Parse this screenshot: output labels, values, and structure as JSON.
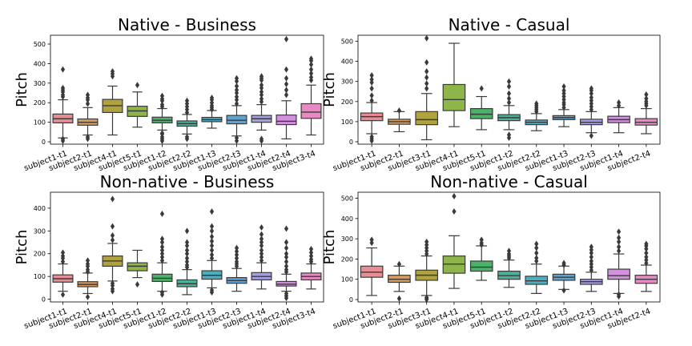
{
  "chart_data": [
    {
      "type": "box",
      "title": "Native - Business",
      "ylabel": "Pitch",
      "xlabel": "",
      "ylim": [
        -12,
        545
      ],
      "yticks": [
        0,
        100,
        200,
        300,
        400,
        500
      ],
      "grid": false,
      "categories": [
        "subject1-t1",
        "subject2-t1",
        "subject4-t1",
        "subject5-t1",
        "subject1-t2",
        "subject2-t2",
        "subject1-t3",
        "subject2-t3",
        "subject1-t4",
        "subject2-t4",
        "subject3-t4"
      ],
      "colors": [
        "#e88d94",
        "#d99a5a",
        "#b0a23f",
        "#8db54a",
        "#4bb26a",
        "#4bb29a",
        "#4bafc4",
        "#59a5d9",
        "#a39ee6",
        "#d48fe0",
        "#e78ac3"
      ],
      "boxes": [
        {
          "whislo": 20,
          "q1": 97,
          "med": 118,
          "q3": 142,
          "whishi": 215,
          "fliers": [
            5,
            15,
            230,
            240,
            255,
            265,
            275,
            370
          ]
        },
        {
          "whislo": 35,
          "q1": 85,
          "med": 100,
          "q3": 117,
          "whishi": 175,
          "fliers": [
            15,
            25,
            195,
            215,
            225,
            240
          ]
        },
        {
          "whislo": 35,
          "q1": 150,
          "med": 185,
          "q3": 217,
          "whishi": 285,
          "fliers": [
            335,
            348,
            360
          ]
        },
        {
          "whislo": 75,
          "q1": 130,
          "med": 158,
          "q3": 182,
          "whishi": 255,
          "fliers": [
            290
          ]
        },
        {
          "whislo": 60,
          "q1": 97,
          "med": 110,
          "q3": 126,
          "whishi": 170,
          "fliers": [
            5,
            15,
            25,
            40,
            45,
            180,
            190,
            210,
            220,
            235
          ]
        },
        {
          "whislo": 40,
          "q1": 80,
          "med": 93,
          "q3": 107,
          "whishi": 140,
          "fliers": [
            15,
            25,
            150,
            165,
            180,
            195,
            210
          ]
        },
        {
          "whislo": 70,
          "q1": 103,
          "med": 113,
          "q3": 125,
          "whishi": 160,
          "fliers": [
            165,
            175,
            185,
            200,
            215,
            225
          ]
        },
        {
          "whislo": 30,
          "q1": 92,
          "med": 110,
          "q3": 135,
          "whishi": 185,
          "fliers": [
            5,
            20,
            195,
            215,
            230,
            250,
            265,
            285,
            310,
            325
          ]
        },
        {
          "whislo": 60,
          "q1": 100,
          "med": 118,
          "q3": 135,
          "whishi": 190,
          "fliers": [
            5,
            15,
            205,
            220,
            240,
            255,
            275,
            290,
            315,
            325,
            335
          ]
        },
        {
          "whislo": 15,
          "q1": 88,
          "med": 105,
          "q3": 137,
          "whishi": 210,
          "fliers": [
            240,
            265,
            295,
            325,
            370,
            525
          ]
        },
        {
          "whislo": 35,
          "q1": 120,
          "med": 152,
          "q3": 195,
          "whishi": 290,
          "fliers": [
            315,
            330,
            350,
            370,
            395,
            415,
            425
          ]
        }
      ]
    },
    {
      "type": "box",
      "title": "Native - Casual",
      "ylabel": "Pitch",
      "xlabel": "",
      "ylim": [
        -12,
        530
      ],
      "yticks": [
        0,
        100,
        200,
        300,
        400,
        500
      ],
      "grid": false,
      "categories": [
        "subject1-t1",
        "subject2-t1",
        "subject3-t1",
        "subject4-t1",
        "subject5-t1",
        "subject1-t2",
        "subject2-t2",
        "subject1-t3",
        "subject2-t3",
        "subject1-t4",
        "subject2-t4"
      ],
      "colors": [
        "#e88d94",
        "#d99a5a",
        "#b0a23f",
        "#8db54a",
        "#4bb26a",
        "#4bb29a",
        "#4bafc4",
        "#59a5d9",
        "#a39ee6",
        "#d48fe0",
        "#e78ac3"
      ],
      "boxes": [
        {
          "whislo": 40,
          "q1": 105,
          "med": 125,
          "q3": 143,
          "whishi": 195,
          "fliers": [
            5,
            15,
            25,
            205,
            230,
            265,
            295,
            310,
            330
          ]
        },
        {
          "whislo": 50,
          "q1": 87,
          "med": 100,
          "q3": 112,
          "whishi": 150,
          "fliers": [
            155
          ]
        },
        {
          "whislo": 10,
          "q1": 85,
          "med": 110,
          "q3": 150,
          "whishi": 240,
          "fliers": [
            265,
            290,
            320,
            350,
            395,
            515
          ]
        },
        {
          "whislo": 75,
          "q1": 155,
          "med": 210,
          "q3": 285,
          "whishi": 490,
          "fliers": []
        },
        {
          "whislo": 60,
          "q1": 115,
          "med": 137,
          "q3": 165,
          "whishi": 225,
          "fliers": [
            265
          ]
        },
        {
          "whislo": 60,
          "q1": 105,
          "med": 120,
          "q3": 135,
          "whishi": 180,
          "fliers": [
            20,
            35,
            195,
            215,
            240,
            275,
            300
          ]
        },
        {
          "whislo": 55,
          "q1": 85,
          "med": 97,
          "q3": 108,
          "whishi": 140,
          "fliers": [
            150,
            160,
            170,
            180,
            190
          ]
        },
        {
          "whislo": 75,
          "q1": 110,
          "med": 120,
          "q3": 130,
          "whishi": 160,
          "fliers": [
            170,
            185,
            195,
            210,
            225,
            240,
            255,
            275
          ]
        },
        {
          "whislo": 45,
          "q1": 85,
          "med": 97,
          "q3": 112,
          "whishi": 150,
          "fliers": [
            30,
            160,
            175,
            190,
            205,
            220,
            240,
            255,
            265
          ]
        },
        {
          "whislo": 45,
          "q1": 95,
          "med": 110,
          "q3": 127,
          "whishi": 170,
          "fliers": [
            180,
            195
          ]
        },
        {
          "whislo": 40,
          "q1": 83,
          "med": 97,
          "q3": 115,
          "whishi": 165,
          "fliers": [
            180,
            190,
            200,
            215,
            235
          ]
        }
      ]
    },
    {
      "type": "box",
      "title": "Non-native - Business",
      "ylabel": "Pitch",
      "xlabel": "",
      "ylim": [
        -12,
        470
      ],
      "yticks": [
        0,
        100,
        200,
        300,
        400
      ],
      "grid": false,
      "categories": [
        "subject1-t1",
        "subject2-t1",
        "subject4-t1",
        "subject5-t1",
        "subject1-t2",
        "subject2-t2",
        "subject1-t3",
        "subject2-t3",
        "subject1-t4",
        "subject2-t4",
        "subject3-t4"
      ],
      "colors": [
        "#e88d94",
        "#d99a5a",
        "#b0a23f",
        "#8db54a",
        "#4bb26a",
        "#4bb29a",
        "#4bafc4",
        "#59a5d9",
        "#a39ee6",
        "#d48fe0",
        "#e78ac3"
      ],
      "boxes": [
        {
          "whislo": 35,
          "q1": 75,
          "med": 90,
          "q3": 107,
          "whishi": 155,
          "fliers": [
            20,
            165,
            180,
            190,
            205
          ]
        },
        {
          "whislo": 25,
          "q1": 55,
          "med": 65,
          "q3": 77,
          "whishi": 115,
          "fliers": [
            10,
            120,
            130,
            145,
            155,
            170
          ]
        },
        {
          "whislo": 80,
          "q1": 145,
          "med": 168,
          "q3": 190,
          "whishi": 245,
          "fliers": [
            35,
            45,
            60,
            70,
            260,
            280,
            320,
            440
          ]
        },
        {
          "whislo": 95,
          "q1": 125,
          "med": 145,
          "q3": 160,
          "whishi": 215,
          "fliers": [
            65
          ]
        },
        {
          "whislo": 35,
          "q1": 78,
          "med": 92,
          "q3": 110,
          "whishi": 160,
          "fliers": [
            20,
            30,
            170,
            185,
            200,
            215,
            230,
            250,
            265,
            375
          ]
        },
        {
          "whislo": 20,
          "q1": 55,
          "med": 68,
          "q3": 85,
          "whishi": 130,
          "fliers": [
            140,
            150,
            165,
            180,
            200,
            215,
            235,
            250,
            300
          ]
        },
        {
          "whislo": 50,
          "q1": 88,
          "med": 105,
          "q3": 125,
          "whishi": 170,
          "fliers": [
            30,
            40,
            180,
            195,
            215,
            235,
            255,
            275,
            300,
            320,
            385
          ]
        },
        {
          "whislo": 35,
          "q1": 70,
          "med": 82,
          "q3": 95,
          "whishi": 135,
          "fliers": [
            145,
            155,
            165,
            180,
            195,
            210,
            225
          ]
        },
        {
          "whislo": 45,
          "q1": 85,
          "med": 100,
          "q3": 117,
          "whishi": 160,
          "fliers": [
            170,
            185,
            200,
            215,
            235,
            250,
            265,
            285,
            315
          ]
        },
        {
          "whislo": 35,
          "q1": 58,
          "med": 66,
          "q3": 78,
          "whishi": 110,
          "fliers": [
            5,
            15,
            25,
            120,
            130,
            145,
            165,
            185,
            200,
            225,
            250,
            310
          ]
        },
        {
          "whislo": 45,
          "q1": 85,
          "med": 100,
          "q3": 115,
          "whishi": 155,
          "fliers": [
            165,
            175,
            190,
            205,
            220
          ]
        }
      ]
    },
    {
      "type": "box",
      "title": "Non-native - Casual",
      "ylabel": "Pitch",
      "xlabel": "",
      "ylim": [
        -12,
        530
      ],
      "yticks": [
        0,
        100,
        200,
        300,
        400,
        500
      ],
      "grid": false,
      "categories": [
        "subject1-t1",
        "subject2-t1",
        "subject3-t1",
        "subject4-t1",
        "subject5-t1",
        "subject1-t2",
        "subject2-t2",
        "subject1-t3",
        "subject2-t3",
        "subject1-t4",
        "subject2-t4"
      ],
      "colors": [
        "#e88d94",
        "#d99a5a",
        "#b0a23f",
        "#8db54a",
        "#4bb26a",
        "#4bb29a",
        "#4bafc4",
        "#59a5d9",
        "#a39ee6",
        "#d48fe0",
        "#e78ac3"
      ],
      "boxes": [
        {
          "whislo": 20,
          "q1": 110,
          "med": 135,
          "q3": 165,
          "whishi": 255,
          "fliers": [
            280,
            295
          ]
        },
        {
          "whislo": 40,
          "q1": 85,
          "med": 100,
          "q3": 120,
          "whishi": 165,
          "fliers": [
            5,
            175
          ]
        },
        {
          "whislo": 20,
          "q1": 95,
          "med": 120,
          "q3": 145,
          "whishi": 215,
          "fliers": [
            0,
            5,
            10,
            225,
            240,
            255,
            270,
            285
          ]
        },
        {
          "whislo": 55,
          "q1": 130,
          "med": 175,
          "q3": 215,
          "whishi": 315,
          "fliers": [
            435,
            510
          ]
        },
        {
          "whislo": 95,
          "q1": 140,
          "med": 160,
          "q3": 190,
          "whishi": 265,
          "fliers": [
            270,
            280,
            295
          ]
        },
        {
          "whislo": 60,
          "q1": 100,
          "med": 118,
          "q3": 140,
          "whishi": 195,
          "fliers": [
            205,
            215,
            225,
            240
          ]
        },
        {
          "whislo": 30,
          "q1": 75,
          "med": 92,
          "q3": 115,
          "whishi": 175,
          "fliers": [
            190,
            205,
            230,
            255,
            275
          ]
        },
        {
          "whislo": 50,
          "q1": 95,
          "med": 110,
          "q3": 125,
          "whishi": 165,
          "fliers": [
            45,
            170,
            180
          ]
        },
        {
          "whislo": 40,
          "q1": 75,
          "med": 88,
          "q3": 100,
          "whishi": 135,
          "fliers": [
            145,
            160,
            175,
            190,
            210,
            230,
            245,
            260
          ]
        },
        {
          "whislo": 30,
          "q1": 100,
          "med": 118,
          "q3": 150,
          "whishi": 225,
          "fliers": [
            15,
            25,
            240,
            260,
            285,
            305,
            335
          ]
        },
        {
          "whislo": 40,
          "q1": 80,
          "med": 100,
          "q3": 120,
          "whishi": 170,
          "fliers": [
            180,
            195,
            210,
            230,
            250,
            265,
            275
          ]
        }
      ]
    }
  ]
}
